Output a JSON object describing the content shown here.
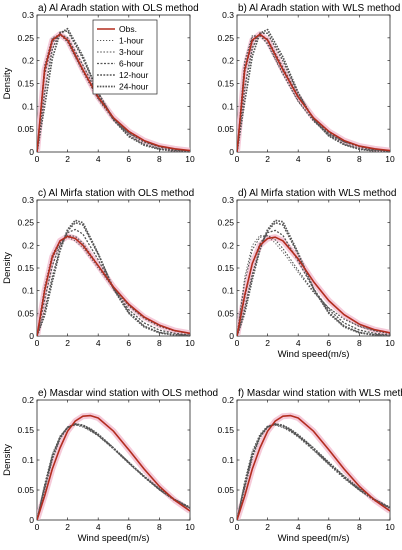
{
  "chart_data": [
    {
      "type": "line",
      "title": "a) Al Aradh station with OLS method",
      "xlabel": "",
      "ylabel": "Density",
      "xlim": [
        0,
        10
      ],
      "ylim": [
        0,
        0.3
      ],
      "xticks": [
        "0",
        "2",
        "4",
        "6",
        "8",
        "10"
      ],
      "yticks": [
        "0",
        "0.05",
        "0.1",
        "0.15",
        "0.2",
        "0.25",
        "0.3"
      ],
      "legend": {
        "placement": "top-right",
        "entries": [
          "Obs.",
          "1-hour",
          "3-hour",
          "6-hour",
          "12-hour",
          "24-hour"
        ]
      },
      "x": [
        0,
        0.5,
        1,
        1.5,
        2,
        3,
        4,
        5,
        6,
        7,
        8,
        9,
        10
      ],
      "series": [
        {
          "name": "Obs.",
          "values": [
            0,
            0.18,
            0.245,
            0.258,
            0.245,
            0.18,
            0.12,
            0.075,
            0.045,
            0.025,
            0.013,
            0.007,
            0.003
          ]
        },
        {
          "name": "1-hour",
          "values": [
            0,
            0.19,
            0.25,
            0.258,
            0.24,
            0.175,
            0.115,
            0.07,
            0.04,
            0.022,
            0.012,
            0.006,
            0.003
          ]
        },
        {
          "name": "3-hour",
          "values": [
            0,
            0.185,
            0.248,
            0.257,
            0.242,
            0.177,
            0.117,
            0.072,
            0.041,
            0.023,
            0.012,
            0.006,
            0.003
          ]
        },
        {
          "name": "6-hour",
          "values": [
            0,
            0.17,
            0.24,
            0.258,
            0.25,
            0.19,
            0.125,
            0.075,
            0.042,
            0.022,
            0.011,
            0.005,
            0.002
          ]
        },
        {
          "name": "12-hour",
          "values": [
            0,
            0.13,
            0.225,
            0.262,
            0.265,
            0.205,
            0.13,
            0.072,
            0.036,
            0.017,
            0.007,
            0.003,
            0.001
          ]
        },
        {
          "name": "24-hour",
          "values": [
            0,
            0.1,
            0.205,
            0.26,
            0.27,
            0.21,
            0.13,
            0.07,
            0.034,
            0.015,
            0.006,
            0.002,
            0.001
          ]
        }
      ],
      "colors": {
        "Obs.": "#b32d1f",
        "forecast": "#555555",
        "band": "#f2b8cc"
      }
    },
    {
      "type": "line",
      "title": "b) Al Aradh station with WLS method",
      "xlabel": "",
      "ylabel": "",
      "xlim": [
        0,
        10
      ],
      "ylim": [
        0,
        0.3
      ],
      "xticks": [
        "0",
        "2",
        "4",
        "6",
        "8",
        "10"
      ],
      "yticks": [
        "0",
        "0.05",
        "0.1",
        "0.15",
        "0.2",
        "0.25",
        "0.3"
      ],
      "x": [
        0,
        0.5,
        1,
        1.5,
        2,
        3,
        4,
        5,
        6,
        7,
        8,
        9,
        10
      ],
      "series": [
        {
          "name": "Obs.",
          "values": [
            0,
            0.18,
            0.245,
            0.258,
            0.245,
            0.18,
            0.12,
            0.075,
            0.045,
            0.025,
            0.013,
            0.007,
            0.003
          ]
        },
        {
          "name": "1-hour",
          "values": [
            0,
            0.2,
            0.255,
            0.255,
            0.235,
            0.17,
            0.11,
            0.067,
            0.039,
            0.022,
            0.012,
            0.006,
            0.003
          ]
        },
        {
          "name": "3-hour",
          "values": [
            0,
            0.195,
            0.252,
            0.256,
            0.238,
            0.172,
            0.112,
            0.069,
            0.04,
            0.022,
            0.012,
            0.006,
            0.003
          ]
        },
        {
          "name": "6-hour",
          "values": [
            0,
            0.175,
            0.242,
            0.257,
            0.247,
            0.185,
            0.122,
            0.074,
            0.042,
            0.022,
            0.011,
            0.005,
            0.002
          ]
        },
        {
          "name": "12-hour",
          "values": [
            0,
            0.14,
            0.228,
            0.26,
            0.26,
            0.2,
            0.128,
            0.072,
            0.037,
            0.017,
            0.007,
            0.003,
            0.001
          ]
        },
        {
          "name": "24-hour",
          "values": [
            0,
            0.11,
            0.21,
            0.26,
            0.268,
            0.208,
            0.13,
            0.07,
            0.035,
            0.016,
            0.006,
            0.002,
            0.001
          ]
        }
      ]
    },
    {
      "type": "line",
      "title": "c) Al Mirfa station with OLS method",
      "xlabel": "",
      "ylabel": "Density",
      "xlim": [
        0,
        10
      ],
      "ylim": [
        0,
        0.3
      ],
      "xticks": [
        "0",
        "2",
        "4",
        "6",
        "8",
        "10"
      ],
      "yticks": [
        "0",
        "0.05",
        "0.1",
        "0.15",
        "0.2",
        "0.25",
        "0.3"
      ],
      "x": [
        0,
        0.5,
        1,
        1.5,
        2,
        2.5,
        3,
        4,
        5,
        6,
        7,
        8,
        9,
        10
      ],
      "series": [
        {
          "name": "Obs.",
          "values": [
            0,
            0.1,
            0.175,
            0.21,
            0.22,
            0.215,
            0.2,
            0.155,
            0.108,
            0.07,
            0.042,
            0.024,
            0.012,
            0.006
          ]
        },
        {
          "name": "1-hour",
          "values": [
            0,
            0.11,
            0.18,
            0.21,
            0.218,
            0.21,
            0.195,
            0.15,
            0.105,
            0.068,
            0.041,
            0.023,
            0.012,
            0.006
          ]
        },
        {
          "name": "3-hour",
          "values": [
            0,
            0.1,
            0.17,
            0.205,
            0.222,
            0.22,
            0.205,
            0.155,
            0.105,
            0.066,
            0.039,
            0.021,
            0.011,
            0.005
          ]
        },
        {
          "name": "6-hour",
          "values": [
            0,
            0.08,
            0.155,
            0.2,
            0.228,
            0.235,
            0.225,
            0.168,
            0.105,
            0.058,
            0.029,
            0.013,
            0.006,
            0.002
          ]
        },
        {
          "name": "12-hour",
          "values": [
            0,
            0.055,
            0.13,
            0.192,
            0.232,
            0.25,
            0.245,
            0.18,
            0.105,
            0.052,
            0.022,
            0.008,
            0.003,
            0.001
          ]
        },
        {
          "name": "24-hour",
          "values": [
            0,
            0.045,
            0.12,
            0.188,
            0.235,
            0.255,
            0.25,
            0.182,
            0.104,
            0.05,
            0.02,
            0.007,
            0.002,
            0.001
          ]
        }
      ]
    },
    {
      "type": "line",
      "title": "d) Al Mirfa station with WLS method",
      "xlabel": "Wind speed(m/s)",
      "ylabel": "",
      "xlim": [
        0,
        10
      ],
      "ylim": [
        0,
        0.3
      ],
      "xticks": [
        "0",
        "2",
        "4",
        "6",
        "8",
        "10"
      ],
      "yticks": [
        "0",
        "0.05",
        "0.1",
        "0.15",
        "0.2",
        "0.25",
        "0.3"
      ],
      "x": [
        0,
        0.5,
        1,
        1.5,
        2,
        2.5,
        3,
        4,
        5,
        6,
        7,
        8,
        9,
        10
      ],
      "series": [
        {
          "name": "Obs.",
          "values": [
            0,
            0.09,
            0.16,
            0.2,
            0.215,
            0.218,
            0.21,
            0.17,
            0.12,
            0.078,
            0.047,
            0.026,
            0.014,
            0.007
          ]
        },
        {
          "name": "1-hour",
          "values": [
            0,
            0.13,
            0.2,
            0.222,
            0.22,
            0.205,
            0.185,
            0.14,
            0.096,
            0.062,
            0.038,
            0.022,
            0.012,
            0.006
          ]
        },
        {
          "name": "3-hour",
          "values": [
            0,
            0.12,
            0.19,
            0.218,
            0.222,
            0.212,
            0.193,
            0.145,
            0.098,
            0.062,
            0.037,
            0.021,
            0.011,
            0.005
          ]
        },
        {
          "name": "6-hour",
          "values": [
            0,
            0.085,
            0.16,
            0.203,
            0.228,
            0.233,
            0.222,
            0.165,
            0.104,
            0.058,
            0.029,
            0.013,
            0.006,
            0.002
          ]
        },
        {
          "name": "12-hour",
          "values": [
            0,
            0.06,
            0.135,
            0.193,
            0.232,
            0.25,
            0.245,
            0.18,
            0.105,
            0.052,
            0.022,
            0.008,
            0.003,
            0.001
          ]
        },
        {
          "name": "24-hour",
          "values": [
            0,
            0.05,
            0.125,
            0.19,
            0.235,
            0.255,
            0.252,
            0.183,
            0.104,
            0.05,
            0.02,
            0.007,
            0.002,
            0.001
          ]
        }
      ]
    },
    {
      "type": "line",
      "title": "e) Masdar wind station with OLS method",
      "xlabel": "Wind speed(m/s)",
      "ylabel": "Density",
      "xlim": [
        0,
        10
      ],
      "ylim": [
        0,
        0.2
      ],
      "xticks": [
        "0",
        "2",
        "4",
        "6",
        "8",
        "10"
      ],
      "yticks": [
        "0",
        "0.05",
        "0.1",
        "0.15",
        "0.2"
      ],
      "x": [
        0,
        0.5,
        1,
        1.5,
        2,
        2.5,
        3,
        3.5,
        4,
        5,
        6,
        7,
        8,
        9,
        10
      ],
      "series": [
        {
          "name": "Obs.",
          "values": [
            0,
            0.04,
            0.085,
            0.12,
            0.148,
            0.165,
            0.173,
            0.174,
            0.17,
            0.148,
            0.117,
            0.085,
            0.056,
            0.033,
            0.015
          ]
        },
        {
          "name": "1-hour",
          "values": [
            0,
            0.06,
            0.11,
            0.14,
            0.155,
            0.158,
            0.155,
            0.148,
            0.14,
            0.118,
            0.094,
            0.071,
            0.05,
            0.032,
            0.019
          ]
        },
        {
          "name": "3-hour",
          "values": [
            0,
            0.058,
            0.108,
            0.139,
            0.155,
            0.159,
            0.156,
            0.149,
            0.141,
            0.119,
            0.095,
            0.072,
            0.05,
            0.033,
            0.02
          ]
        },
        {
          "name": "6-hour",
          "values": [
            0,
            0.056,
            0.106,
            0.138,
            0.155,
            0.16,
            0.157,
            0.15,
            0.141,
            0.119,
            0.095,
            0.072,
            0.051,
            0.033,
            0.02
          ]
        },
        {
          "name": "12-hour",
          "values": [
            0,
            0.054,
            0.104,
            0.137,
            0.154,
            0.16,
            0.158,
            0.151,
            0.142,
            0.12,
            0.096,
            0.072,
            0.051,
            0.034,
            0.021
          ]
        },
        {
          "name": "24-hour",
          "values": [
            0,
            0.052,
            0.102,
            0.136,
            0.154,
            0.16,
            0.158,
            0.152,
            0.143,
            0.12,
            0.096,
            0.073,
            0.052,
            0.034,
            0.021
          ]
        }
      ]
    },
    {
      "type": "line",
      "title": "f) Masdar wind station with WLS method",
      "xlabel": "Wind speed(m/s)",
      "ylabel": "",
      "xlim": [
        0,
        10
      ],
      "ylim": [
        0,
        0.2
      ],
      "xticks": [
        "0",
        "2",
        "4",
        "6",
        "8",
        "10"
      ],
      "yticks": [
        "0",
        "0.05",
        "0.1",
        "0.15",
        "0.2"
      ],
      "x": [
        0,
        0.5,
        1,
        1.5,
        2,
        2.5,
        3,
        3.5,
        4,
        5,
        6,
        7,
        8,
        9,
        10
      ],
      "series": [
        {
          "name": "Obs.",
          "values": [
            0,
            0.04,
            0.085,
            0.12,
            0.148,
            0.165,
            0.173,
            0.174,
            0.17,
            0.148,
            0.117,
            0.085,
            0.056,
            0.033,
            0.015
          ]
        },
        {
          "name": "1-hour",
          "values": [
            0,
            0.065,
            0.115,
            0.143,
            0.157,
            0.158,
            0.154,
            0.147,
            0.138,
            0.116,
            0.092,
            0.069,
            0.049,
            0.032,
            0.019
          ]
        },
        {
          "name": "3-hour",
          "values": [
            0,
            0.062,
            0.112,
            0.141,
            0.156,
            0.159,
            0.155,
            0.148,
            0.139,
            0.117,
            0.093,
            0.07,
            0.05,
            0.033,
            0.02
          ]
        },
        {
          "name": "6-hour",
          "values": [
            0,
            0.06,
            0.11,
            0.14,
            0.156,
            0.16,
            0.156,
            0.149,
            0.14,
            0.118,
            0.094,
            0.071,
            0.05,
            0.033,
            0.02
          ]
        },
        {
          "name": "12-hour",
          "values": [
            0,
            0.057,
            0.107,
            0.139,
            0.155,
            0.16,
            0.157,
            0.15,
            0.141,
            0.119,
            0.095,
            0.072,
            0.051,
            0.034,
            0.021
          ]
        },
        {
          "name": "24-hour",
          "values": [
            0,
            0.055,
            0.105,
            0.138,
            0.155,
            0.16,
            0.158,
            0.151,
            0.142,
            0.12,
            0.096,
            0.073,
            0.052,
            0.034,
            0.021
          ]
        }
      ]
    }
  ]
}
